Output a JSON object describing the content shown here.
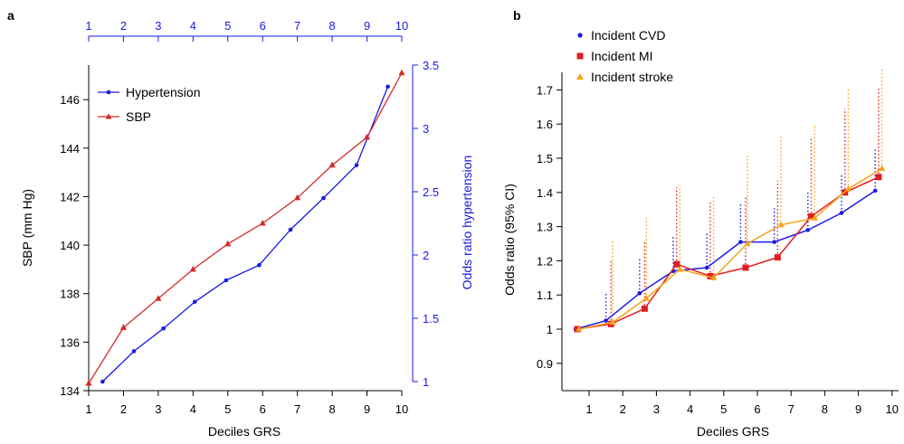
{
  "chart_data": [
    {
      "panel": "a",
      "type": "line",
      "xlabel": "Deciles GRS",
      "ylabel": "SBP (mm Hg)",
      "y2label": "Odds ratio hypertension",
      "x_ticks": [
        1,
        2,
        3,
        4,
        5,
        6,
        7,
        8,
        9,
        10
      ],
      "top_x_ticks": [
        1,
        2,
        3,
        4,
        5,
        6,
        7,
        8,
        9,
        10
      ],
      "y_ticks": [
        134,
        136,
        138,
        140,
        142,
        144,
        146
      ],
      "y2_ticks": [
        "1",
        "1.5",
        "2",
        "2.5",
        "3",
        "3.5"
      ],
      "xlim": [
        1,
        10
      ],
      "ylim": [
        134,
        147.2
      ],
      "y2lim": [
        1,
        3.5
      ],
      "series": [
        {
          "name": "Hypertension",
          "axis": "right",
          "color": "#1a1ae6",
          "marker": "circle",
          "x": [
            1.4,
            2.3,
            3.15,
            4.05,
            4.95,
            5.9,
            6.8,
            7.75,
            8.7,
            9.6
          ],
          "y": [
            1.0,
            1.24,
            1.42,
            1.63,
            1.8,
            1.92,
            2.2,
            2.45,
            2.71,
            3.33
          ]
        },
        {
          "name": "SBP",
          "axis": "left",
          "color": "#d42a2a",
          "marker": "triangle",
          "x": [
            1,
            2,
            3,
            4,
            5,
            6,
            7,
            8,
            9,
            10
          ],
          "y": [
            134.3,
            136.6,
            137.8,
            139.0,
            140.05,
            140.9,
            141.95,
            143.3,
            144.45,
            147.1
          ]
        }
      ],
      "legend_position": "top-left"
    },
    {
      "panel": "b",
      "type": "line",
      "xlabel": "Deciles GRS",
      "ylabel": "Odds ratio (95% CI)",
      "x_ticks": [
        1,
        2,
        3,
        4,
        5,
        6,
        7,
        8,
        9,
        10
      ],
      "y_ticks": [
        "0.9",
        "1",
        "1.1",
        "1.2",
        "1.3",
        "1.4",
        "1.5",
        "1.6",
        "1.7"
      ],
      "xlim": [
        0.5,
        10
      ],
      "ylim": [
        0.85,
        1.75
      ],
      "series": [
        {
          "name": "Incident CVD",
          "color": "#1a1ae6",
          "marker": "circle",
          "x": [
            0.6,
            1.5,
            2.5,
            3.5,
            4.5,
            5.5,
            6.5,
            7.5,
            8.5,
            9.5
          ],
          "y": [
            1.0,
            1.025,
            1.105,
            1.17,
            1.18,
            1.255,
            1.255,
            1.29,
            1.34,
            1.405
          ],
          "ci_upper": [
            null,
            1.11,
            1.21,
            1.275,
            1.285,
            1.365,
            1.36,
            1.405,
            1.455,
            1.525
          ]
        },
        {
          "name": "Incident MI",
          "color": "#e01e1e",
          "marker": "square",
          "x": [
            0.65,
            1.65,
            2.65,
            3.6,
            4.6,
            5.65,
            6.6,
            7.6,
            8.6,
            9.6
          ],
          "y": [
            1.0,
            1.015,
            1.06,
            1.19,
            1.155,
            1.18,
            1.21,
            1.33,
            1.4,
            1.445
          ],
          "ci_upper": [
            null,
            1.205,
            1.255,
            1.415,
            1.37,
            1.39,
            1.435,
            1.56,
            1.645,
            1.71
          ]
        },
        {
          "name": "Incident stroke",
          "color": "#f7a21b",
          "marker": "triangle",
          "x": [
            0.7,
            1.7,
            2.7,
            3.7,
            4.7,
            5.7,
            6.7,
            7.7,
            8.7,
            9.7
          ],
          "y": [
            1.0,
            1.02,
            1.09,
            1.175,
            1.15,
            1.25,
            1.305,
            1.325,
            1.41,
            1.47
          ],
          "ci_upper": [
            null,
            1.26,
            1.325,
            1.42,
            1.39,
            1.515,
            1.57,
            1.6,
            1.7,
            1.765
          ]
        }
      ],
      "legend_position": "top-left"
    }
  ]
}
